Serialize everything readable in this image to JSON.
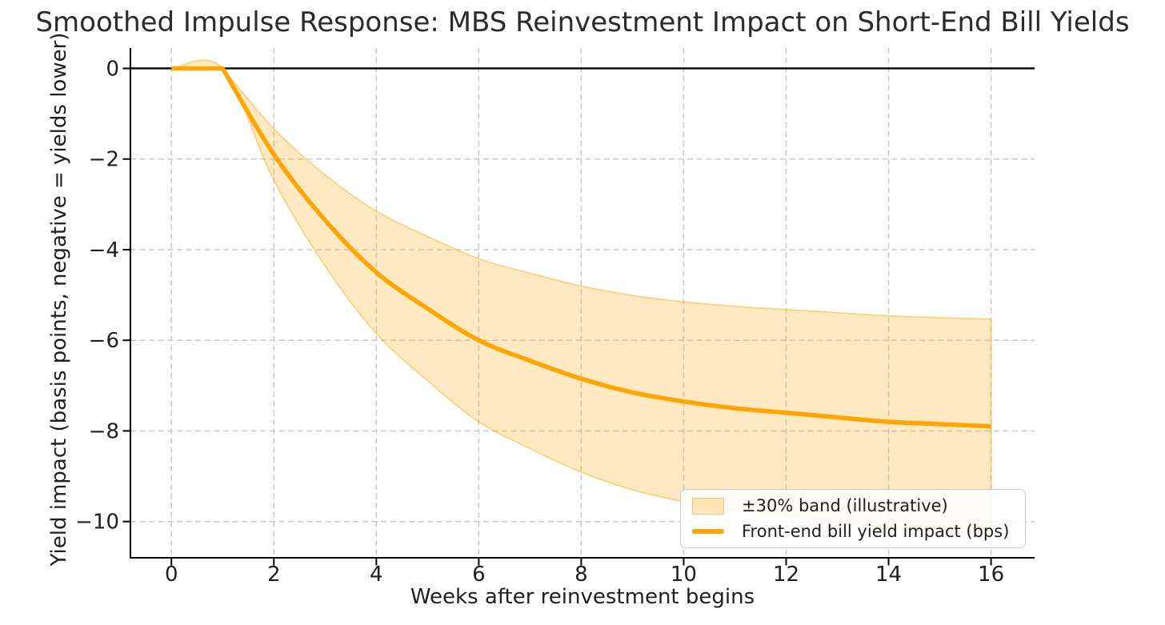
{
  "chart_data": {
    "type": "line",
    "title": "Smoothed Impulse Response: MBS Reinvestment Impact on Short-End Bill Yields",
    "xlabel": "Weeks after reinvestment begins",
    "ylabel": "Yield impact (basis points, negative = yields lower)",
    "x": [
      0,
      1,
      2,
      3,
      4,
      5,
      6,
      7,
      8,
      9,
      10,
      11,
      12,
      13,
      14,
      15,
      16
    ],
    "series": [
      {
        "name": "Front-end bill yield impact (bps)",
        "values": [
          0,
          0,
          -1.9,
          -3.35,
          -4.5,
          -5.3,
          -6.0,
          -6.45,
          -6.85,
          -7.15,
          -7.35,
          -7.5,
          -7.6,
          -7.7,
          -7.8,
          -7.85,
          -7.9
        ],
        "color": "#FFA500",
        "linewidth": 5.5
      }
    ],
    "band": {
      "label": "±30% band (illustrative)",
      "upper": [
        0,
        0,
        -1.33,
        -2.35,
        -3.15,
        -3.71,
        -4.2,
        -4.52,
        -4.8,
        -5.01,
        -5.15,
        -5.25,
        -5.32,
        -5.39,
        -5.46,
        -5.5,
        -5.53
      ],
      "lower": [
        0,
        0,
        -2.47,
        -4.36,
        -5.85,
        -6.89,
        -7.8,
        -8.39,
        -8.91,
        -9.3,
        -9.56,
        -9.75,
        -9.88,
        -10.01,
        -10.14,
        -10.21,
        -10.27
      ],
      "fill": "rgba(255,165,0,0.24)",
      "edge": "rgba(255,165,0,0.5)"
    },
    "xticks": [
      0,
      2,
      4,
      6,
      8,
      10,
      12,
      14,
      16
    ],
    "yticks": [
      0,
      -2,
      -4,
      -6,
      -8,
      -10
    ],
    "xlim": [
      -0.8,
      16.85
    ],
    "ylim": [
      -10.8,
      0.45
    ],
    "grid": true,
    "grid_color": "#c9c9c9",
    "zero_line": true,
    "zero_line_color": "#000000",
    "spine_color": "#000000",
    "tick_label_color": "#1f1f1f",
    "legend_position": "lower right"
  }
}
